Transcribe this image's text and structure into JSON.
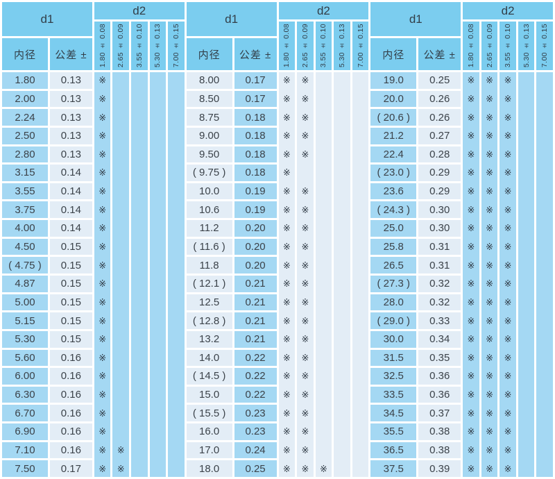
{
  "colors": {
    "header_blue": "#7bcdef",
    "cell_blue": "#a4d8f3",
    "cell_light": "#e3edf6",
    "separator_white": "#ffffff",
    "text_dark": "#3b4249"
  },
  "mark_glyph": "※",
  "panels": [
    {
      "d1_label": "d1",
      "d2_label": "d2",
      "inner_dia_label": "内径",
      "tolerance_label": "公差 ±",
      "d2_cols": [
        "1.80 ± 0.08",
        "2.65 ± 0.09",
        "3.55 ± 0.10",
        "5.30 ± 0.13",
        "7.00 ± 0.15"
      ],
      "rows": [
        {
          "d1": "1.80",
          "tol": "0.13",
          "marks": [
            1,
            0,
            0,
            0,
            0
          ]
        },
        {
          "d1": "2.00",
          "tol": "0.13",
          "marks": [
            1,
            0,
            0,
            0,
            0
          ]
        },
        {
          "d1": "2.24",
          "tol": "0.13",
          "marks": [
            1,
            0,
            0,
            0,
            0
          ]
        },
        {
          "d1": "2.50",
          "tol": "0.13",
          "marks": [
            1,
            0,
            0,
            0,
            0
          ]
        },
        {
          "d1": "2.80",
          "tol": "0.13",
          "marks": [
            1,
            0,
            0,
            0,
            0
          ]
        },
        {
          "d1": "3.15",
          "tol": "0.14",
          "marks": [
            1,
            0,
            0,
            0,
            0
          ]
        },
        {
          "d1": "3.55",
          "tol": "0.14",
          "marks": [
            1,
            0,
            0,
            0,
            0
          ]
        },
        {
          "d1": "3.75",
          "tol": "0.14",
          "marks": [
            1,
            0,
            0,
            0,
            0
          ]
        },
        {
          "d1": "4.00",
          "tol": "0.14",
          "marks": [
            1,
            0,
            0,
            0,
            0
          ]
        },
        {
          "d1": "4.50",
          "tol": "0.15",
          "marks": [
            1,
            0,
            0,
            0,
            0
          ]
        },
        {
          "d1": "( 4.75 )",
          "tol": "0.15",
          "marks": [
            1,
            0,
            0,
            0,
            0
          ]
        },
        {
          "d1": "4.87",
          "tol": "0.15",
          "marks": [
            1,
            0,
            0,
            0,
            0
          ]
        },
        {
          "d1": "5.00",
          "tol": "0.15",
          "marks": [
            1,
            0,
            0,
            0,
            0
          ]
        },
        {
          "d1": "5.15",
          "tol": "0.15",
          "marks": [
            1,
            0,
            0,
            0,
            0
          ]
        },
        {
          "d1": "5.30",
          "tol": "0.15",
          "marks": [
            1,
            0,
            0,
            0,
            0
          ]
        },
        {
          "d1": "5.60",
          "tol": "0.16",
          "marks": [
            1,
            0,
            0,
            0,
            0
          ]
        },
        {
          "d1": "6.00",
          "tol": "0.16",
          "marks": [
            1,
            0,
            0,
            0,
            0
          ]
        },
        {
          "d1": "6.30",
          "tol": "0.16",
          "marks": [
            1,
            0,
            0,
            0,
            0
          ]
        },
        {
          "d1": "6.70",
          "tol": "0.16",
          "marks": [
            1,
            0,
            0,
            0,
            0
          ]
        },
        {
          "d1": "6.90",
          "tol": "0.16",
          "marks": [
            1,
            0,
            0,
            0,
            0
          ]
        },
        {
          "d1": "7.10",
          "tol": "0.16",
          "marks": [
            1,
            1,
            0,
            0,
            0
          ]
        },
        {
          "d1": "7.50",
          "tol": "0.17",
          "marks": [
            1,
            1,
            0,
            0,
            0
          ]
        }
      ]
    },
    {
      "d1_label": "d1",
      "d2_label": "d2",
      "inner_dia_label": "内径",
      "tolerance_label": "公差 ±",
      "d2_cols": [
        "1.80 ± 0.08",
        "2.65 ± 0.09",
        "3.55 ± 0.10",
        "5.30 ± 0.13",
        "7.00 ± 0.15"
      ],
      "rows": [
        {
          "d1": "8.00",
          "tol": "0.17",
          "marks": [
            1,
            1,
            0,
            0,
            0
          ]
        },
        {
          "d1": "8.50",
          "tol": "0.17",
          "marks": [
            1,
            1,
            0,
            0,
            0
          ]
        },
        {
          "d1": "8.75",
          "tol": "0.18",
          "marks": [
            1,
            1,
            0,
            0,
            0
          ]
        },
        {
          "d1": "9.00",
          "tol": "0.18",
          "marks": [
            1,
            1,
            0,
            0,
            0
          ]
        },
        {
          "d1": "9.50",
          "tol": "0.18",
          "marks": [
            1,
            1,
            0,
            0,
            0
          ]
        },
        {
          "d1": "( 9.75 )",
          "tol": "0.18",
          "marks": [
            1,
            0,
            0,
            0,
            0
          ]
        },
        {
          "d1": "10.0",
          "tol": "0.19",
          "marks": [
            1,
            1,
            0,
            0,
            0
          ]
        },
        {
          "d1": "10.6",
          "tol": "0.19",
          "marks": [
            1,
            1,
            0,
            0,
            0
          ]
        },
        {
          "d1": "11.2",
          "tol": "0.20",
          "marks": [
            1,
            1,
            0,
            0,
            0
          ]
        },
        {
          "d1": "( 11.6 )",
          "tol": "0.20",
          "marks": [
            1,
            1,
            0,
            0,
            0
          ]
        },
        {
          "d1": "11.8",
          "tol": "0.20",
          "marks": [
            1,
            1,
            0,
            0,
            0
          ]
        },
        {
          "d1": "( 12.1 )",
          "tol": "0.21",
          "marks": [
            1,
            1,
            0,
            0,
            0
          ]
        },
        {
          "d1": "12.5",
          "tol": "0.21",
          "marks": [
            1,
            1,
            0,
            0,
            0
          ]
        },
        {
          "d1": "( 12.8 )",
          "tol": "0.21",
          "marks": [
            1,
            1,
            0,
            0,
            0
          ]
        },
        {
          "d1": "13.2",
          "tol": "0.21",
          "marks": [
            1,
            1,
            0,
            0,
            0
          ]
        },
        {
          "d1": "14.0",
          "tol": "0.22",
          "marks": [
            1,
            1,
            0,
            0,
            0
          ]
        },
        {
          "d1": "( 14.5 )",
          "tol": "0.22",
          "marks": [
            1,
            1,
            0,
            0,
            0
          ]
        },
        {
          "d1": "15.0",
          "tol": "0.22",
          "marks": [
            1,
            1,
            0,
            0,
            0
          ]
        },
        {
          "d1": "( 15.5 )",
          "tol": "0.23",
          "marks": [
            1,
            1,
            0,
            0,
            0
          ]
        },
        {
          "d1": "16.0",
          "tol": "0.23",
          "marks": [
            1,
            1,
            0,
            0,
            0
          ]
        },
        {
          "d1": "17.0",
          "tol": "0.24",
          "marks": [
            1,
            1,
            0,
            0,
            0
          ]
        },
        {
          "d1": "18.0",
          "tol": "0.25",
          "marks": [
            1,
            1,
            1,
            0,
            0
          ]
        }
      ]
    },
    {
      "d1_label": "d1",
      "d2_label": "d2",
      "inner_dia_label": "内径",
      "tolerance_label": "公差 ±",
      "d2_cols": [
        "1.80 ± 0.08",
        "2.65 ± 0.09",
        "3.55 ± 0.10",
        "5.30 ± 0.13",
        "7.00 ± 0.15"
      ],
      "rows": [
        {
          "d1": "19.0",
          "tol": "0.25",
          "marks": [
            1,
            1,
            1,
            0,
            0
          ]
        },
        {
          "d1": "20.0",
          "tol": "0.26",
          "marks": [
            1,
            1,
            1,
            0,
            0
          ]
        },
        {
          "d1": "( 20.6 )",
          "tol": "0.26",
          "marks": [
            1,
            1,
            1,
            0,
            0
          ]
        },
        {
          "d1": "21.2",
          "tol": "0.27",
          "marks": [
            1,
            1,
            1,
            0,
            0
          ]
        },
        {
          "d1": "22.4",
          "tol": "0.28",
          "marks": [
            1,
            1,
            1,
            0,
            0
          ]
        },
        {
          "d1": "( 23.0 )",
          "tol": "0.29",
          "marks": [
            1,
            1,
            1,
            0,
            0
          ]
        },
        {
          "d1": "23.6",
          "tol": "0.29",
          "marks": [
            1,
            1,
            1,
            0,
            0
          ]
        },
        {
          "d1": "( 24.3 )",
          "tol": "0.30",
          "marks": [
            1,
            1,
            1,
            0,
            0
          ]
        },
        {
          "d1": "25.0",
          "tol": "0.30",
          "marks": [
            1,
            1,
            1,
            0,
            0
          ]
        },
        {
          "d1": "25.8",
          "tol": "0.31",
          "marks": [
            1,
            1,
            1,
            0,
            0
          ]
        },
        {
          "d1": "26.5",
          "tol": "0.31",
          "marks": [
            1,
            1,
            1,
            0,
            0
          ]
        },
        {
          "d1": "( 27.3 )",
          "tol": "0.32",
          "marks": [
            1,
            1,
            1,
            0,
            0
          ]
        },
        {
          "d1": "28.0",
          "tol": "0.32",
          "marks": [
            1,
            1,
            1,
            0,
            0
          ]
        },
        {
          "d1": "( 29.0 )",
          "tol": "0.33",
          "marks": [
            1,
            1,
            1,
            0,
            0
          ]
        },
        {
          "d1": "30.0",
          "tol": "0.34",
          "marks": [
            1,
            1,
            1,
            0,
            0
          ]
        },
        {
          "d1": "31.5",
          "tol": "0.35",
          "marks": [
            1,
            1,
            1,
            0,
            0
          ]
        },
        {
          "d1": "32.5",
          "tol": "0.36",
          "marks": [
            1,
            1,
            1,
            0,
            0
          ]
        },
        {
          "d1": "33.5",
          "tol": "0.36",
          "marks": [
            1,
            1,
            1,
            0,
            0
          ]
        },
        {
          "d1": "34.5",
          "tol": "0.37",
          "marks": [
            1,
            1,
            1,
            0,
            0
          ]
        },
        {
          "d1": "35.5",
          "tol": "0.38",
          "marks": [
            1,
            1,
            1,
            0,
            0
          ]
        },
        {
          "d1": "36.5",
          "tol": "0.38",
          "marks": [
            1,
            1,
            1,
            0,
            0
          ]
        },
        {
          "d1": "37.5",
          "tol": "0.39",
          "marks": [
            1,
            1,
            1,
            0,
            0
          ]
        }
      ]
    }
  ]
}
